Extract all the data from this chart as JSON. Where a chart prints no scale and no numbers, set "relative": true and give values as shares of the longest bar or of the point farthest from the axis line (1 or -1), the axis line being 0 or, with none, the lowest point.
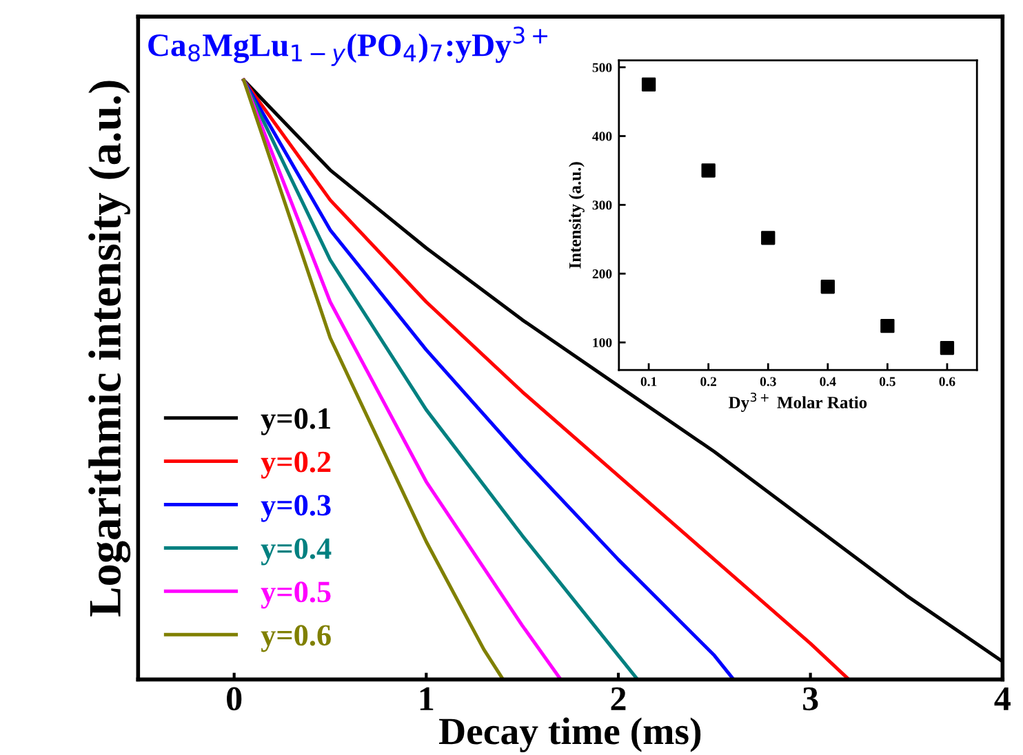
{
  "chart_data": [
    {
      "type": "line",
      "xlabel": "Decay time (ms)",
      "ylabel": "Logarithmic intensity (a.u.)",
      "relative": true,
      "xlim": [
        -0.5,
        4
      ],
      "xticks": [
        0,
        1,
        2,
        3,
        4
      ],
      "tick_labels": "x",
      "legend": "bottom left",
      "annotations": [
        "Ca$_{8}$MgLu$_{1−y}$(PO$_{4}$)$_{7}$:yDy$^{3+}$"
      ],
      "series": [
        {
          "name": "y=0.1",
          "color": "#000000",
          "x": [
            0.05,
            0.5,
            1,
            1.5,
            2,
            2.5,
            3,
            3.5,
            4
          ],
          "values": [
            1,
            0.85,
            0.72,
            0.6,
            0.49,
            0.38,
            0.26,
            0.14,
            0.03
          ]
        },
        {
          "name": "y=0.2",
          "color": "#ff0000",
          "x": [
            0.05,
            0.5,
            1,
            1.5,
            2,
            2.5,
            3,
            3.2
          ],
          "values": [
            1,
            0.8,
            0.63,
            0.48,
            0.34,
            0.2,
            0.06,
            0
          ]
        },
        {
          "name": "y=0.3",
          "color": "#0000ff",
          "x": [
            0.05,
            0.5,
            1,
            1.5,
            2,
            2.5,
            2.6
          ],
          "values": [
            1,
            0.75,
            0.55,
            0.37,
            0.2,
            0.04,
            0
          ]
        },
        {
          "name": "y=0.4",
          "color": "#008080",
          "x": [
            0.05,
            0.5,
            1,
            1.5,
            2,
            2.1
          ],
          "values": [
            1,
            0.7,
            0.45,
            0.24,
            0.04,
            0
          ]
        },
        {
          "name": "y=0.5",
          "color": "#ff00ff",
          "x": [
            0.05,
            0.5,
            1,
            1.5,
            1.7
          ],
          "values": [
            1,
            0.63,
            0.33,
            0.09,
            0
          ]
        },
        {
          "name": "y=0.6",
          "color": "#808000",
          "x": [
            0.05,
            0.5,
            1,
            1.3,
            1.4
          ],
          "values": [
            1,
            0.57,
            0.23,
            0.05,
            0
          ]
        }
      ]
    },
    {
      "type": "scatter",
      "xlabel": "Dy$^{3+}$ Molar Ratio",
      "ylabel": "Intensity (a.u.)",
      "marker": "square",
      "xlim": [
        0.05,
        0.65
      ],
      "xticks": [
        0.1,
        0.2,
        0.3,
        0.4,
        0.5,
        0.6
      ],
      "ylim": [
        60,
        510
      ],
      "yticks": [
        100,
        200,
        300,
        400,
        500
      ],
      "series": [
        {
          "color": "#000000",
          "x": [
            0.1,
            0.2,
            0.3,
            0.4,
            0.5,
            0.6
          ],
          "values": [
            475,
            350,
            252,
            181,
            124,
            92
          ]
        }
      ]
    }
  ]
}
